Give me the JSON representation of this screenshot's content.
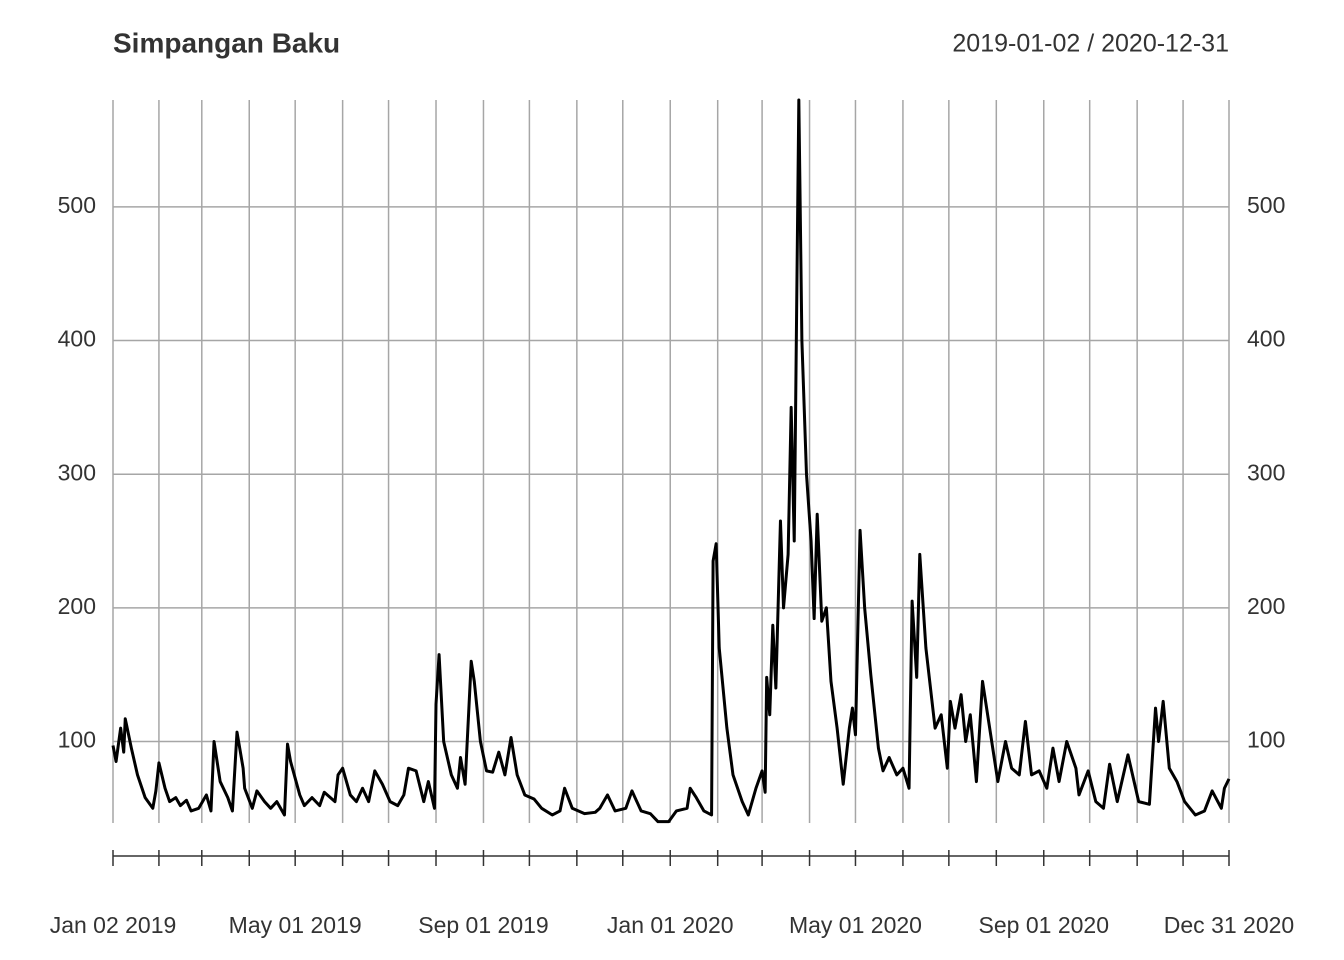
{
  "chart_data": {
    "type": "line",
    "title": "Simpangan Baku",
    "subtitle": "2019-01-02 / 2020-12-31",
    "x": [
      "2019-01-02",
      "2019-01-04",
      "2019-01-07",
      "2019-01-09",
      "2019-01-10",
      "2019-01-14",
      "2019-01-18",
      "2019-01-23",
      "2019-01-28",
      "2019-01-30",
      "2019-02-01",
      "2019-02-05",
      "2019-02-08",
      "2019-02-12",
      "2019-02-15",
      "2019-02-19",
      "2019-02-22",
      "2019-02-27",
      "2019-03-04",
      "2019-03-07",
      "2019-03-09",
      "2019-03-13",
      "2019-03-18",
      "2019-03-21",
      "2019-03-24",
      "2019-03-28",
      "2019-03-29",
      "2019-04-03",
      "2019-04-06",
      "2019-04-11",
      "2019-04-15",
      "2019-04-19",
      "2019-04-24",
      "2019-04-26",
      "2019-04-28",
      "2019-05-04",
      "2019-05-07",
      "2019-05-12",
      "2019-05-17",
      "2019-05-20",
      "2019-05-27",
      "2019-05-29",
      "2019-06-01",
      "2019-06-06",
      "2019-06-10",
      "2019-06-14",
      "2019-06-18",
      "2019-06-22",
      "2019-06-27",
      "2019-07-02",
      "2019-07-07",
      "2019-07-11",
      "2019-07-14",
      "2019-07-19",
      "2019-07-24",
      "2019-07-27",
      "2019-07-31",
      "2019-08-01",
      "2019-08-03",
      "2019-08-06",
      "2019-08-11",
      "2019-08-15",
      "2019-08-17",
      "2019-08-20",
      "2019-08-24",
      "2019-08-26",
      "2019-08-30",
      "2019-09-03",
      "2019-09-07",
      "2019-09-11",
      "2019-09-15",
      "2019-09-19",
      "2019-09-23",
      "2019-09-28",
      "2019-10-04",
      "2019-10-09",
      "2019-10-16",
      "2019-10-21",
      "2019-10-24",
      "2019-10-29",
      "2019-11-06",
      "2019-11-13",
      "2019-11-16",
      "2019-11-21",
      "2019-11-26",
      "2019-12-03",
      "2019-12-07",
      "2019-12-13",
      "2019-12-19",
      "2019-12-24",
      "2019-12-31",
      "2020-01-05",
      "2020-01-12",
      "2020-01-14",
      "2020-01-18",
      "2020-01-23",
      "2020-01-28",
      "2020-01-29",
      "2020-01-31",
      "2020-02-02",
      "2020-02-07",
      "2020-02-11",
      "2020-02-17",
      "2020-02-21",
      "2020-02-26",
      "2020-03-01",
      "2020-03-03",
      "2020-03-04",
      "2020-03-06",
      "2020-03-08",
      "2020-03-10",
      "2020-03-13",
      "2020-03-15",
      "2020-03-18",
      "2020-03-20",
      "2020-03-22",
      "2020-03-25",
      "2020-03-27",
      "2020-03-30",
      "2020-04-02",
      "2020-04-04",
      "2020-04-06",
      "2020-04-09",
      "2020-04-12",
      "2020-04-15",
      "2020-04-19",
      "2020-04-23",
      "2020-04-27",
      "2020-04-29",
      "2020-05-01",
      "2020-05-04",
      "2020-05-07",
      "2020-05-11",
      "2020-05-16",
      "2020-05-19",
      "2020-05-23",
      "2020-05-28",
      "2020-06-01",
      "2020-06-05",
      "2020-06-07",
      "2020-06-10",
      "2020-06-12",
      "2020-06-16",
      "2020-06-22",
      "2020-06-26",
      "2020-06-30",
      "2020-07-02",
      "2020-07-05",
      "2020-07-09",
      "2020-07-12",
      "2020-07-15",
      "2020-07-19",
      "2020-07-23",
      "2020-07-29",
      "2020-08-02",
      "2020-08-07",
      "2020-08-11",
      "2020-08-16",
      "2020-08-20",
      "2020-08-24",
      "2020-08-29",
      "2020-09-03",
      "2020-09-07",
      "2020-09-11",
      "2020-09-16",
      "2020-09-22",
      "2020-09-24",
      "2020-09-30",
      "2020-10-05",
      "2020-10-10",
      "2020-10-14",
      "2020-10-19",
      "2020-10-26",
      "2020-11-02",
      "2020-11-09",
      "2020-11-13",
      "2020-11-15",
      "2020-11-18",
      "2020-11-22",
      "2020-11-27",
      "2020-12-02",
      "2020-12-09",
      "2020-12-15",
      "2020-12-20",
      "2020-12-26",
      "2020-12-28",
      "2020-12-31"
    ],
    "series": [
      {
        "color": "#000000",
        "values": [
          97,
          85,
          110,
          92,
          117,
          95,
          75,
          58,
          50,
          63,
          84,
          65,
          55,
          58,
          52,
          56,
          48,
          50,
          60,
          48,
          100,
          70,
          58,
          48,
          107,
          80,
          65,
          50,
          63,
          55,
          50,
          55,
          45,
          98,
          85,
          60,
          52,
          58,
          52,
          62,
          55,
          75,
          80,
          60,
          55,
          65,
          55,
          78,
          68,
          55,
          52,
          60,
          80,
          78,
          55,
          70,
          50,
          128,
          165,
          100,
          75,
          65,
          88,
          68,
          160,
          145,
          100,
          78,
          77,
          92,
          75,
          103,
          75,
          60,
          57,
          50,
          45,
          48,
          65,
          50,
          46,
          47,
          50,
          60,
          48,
          50,
          63,
          48,
          46,
          40,
          40,
          48,
          50,
          65,
          58,
          48,
          45,
          235,
          248,
          170,
          110,
          75,
          55,
          45,
          65,
          78,
          62,
          148,
          120,
          187,
          140,
          265,
          200,
          240,
          350,
          250,
          580,
          400,
          300,
          250,
          192,
          270,
          190,
          200,
          145,
          110,
          68,
          110,
          125,
          105,
          258,
          200,
          150,
          95,
          78,
          88,
          75,
          80,
          65,
          205,
          148,
          240,
          170,
          110,
          120,
          80,
          130,
          110,
          135,
          100,
          120,
          70,
          145,
          100,
          70,
          100,
          80,
          75,
          115,
          75,
          78,
          65,
          95,
          70,
          100,
          80,
          60,
          78,
          55,
          50,
          83,
          55,
          90,
          55,
          53,
          125,
          100,
          130,
          80,
          70,
          55,
          45,
          48,
          63,
          50,
          65,
          72
        ]
      }
    ],
    "xlim": [
      "2019-01-02",
      "2020-12-31"
    ],
    "xticks": [
      {
        "value": "2019-01-02",
        "label": "Jan 02 2019"
      },
      {
        "value": "2019-02-01",
        "label": null
      },
      {
        "value": "2019-03-01",
        "label": null
      },
      {
        "value": "2019-04-01",
        "label": null
      },
      {
        "value": "2019-05-01",
        "label": "May 01 2019"
      },
      {
        "value": "2019-06-01",
        "label": null
      },
      {
        "value": "2019-07-01",
        "label": null
      },
      {
        "value": "2019-08-01",
        "label": null
      },
      {
        "value": "2019-09-01",
        "label": "Sep 01 2019"
      },
      {
        "value": "2019-10-01",
        "label": null
      },
      {
        "value": "2019-11-01",
        "label": null
      },
      {
        "value": "2019-12-01",
        "label": null
      },
      {
        "value": "2020-01-01",
        "label": "Jan 01 2020"
      },
      {
        "value": "2020-02-01",
        "label": null
      },
      {
        "value": "2020-03-01",
        "label": null
      },
      {
        "value": "2020-04-01",
        "label": null
      },
      {
        "value": "2020-05-01",
        "label": "May 01 2020"
      },
      {
        "value": "2020-06-01",
        "label": null
      },
      {
        "value": "2020-07-01",
        "label": null
      },
      {
        "value": "2020-08-01",
        "label": null
      },
      {
        "value": "2020-09-01",
        "label": "Sep 01 2020"
      },
      {
        "value": "2020-10-01",
        "label": null
      },
      {
        "value": "2020-11-01",
        "label": null
      },
      {
        "value": "2020-12-01",
        "label": null
      },
      {
        "value": "2020-12-31",
        "label": "Dec 31 2020"
      }
    ],
    "ylim": [
      39,
      580
    ],
    "yticks": [
      100,
      200,
      300,
      400,
      500
    ],
    "grid": true
  }
}
